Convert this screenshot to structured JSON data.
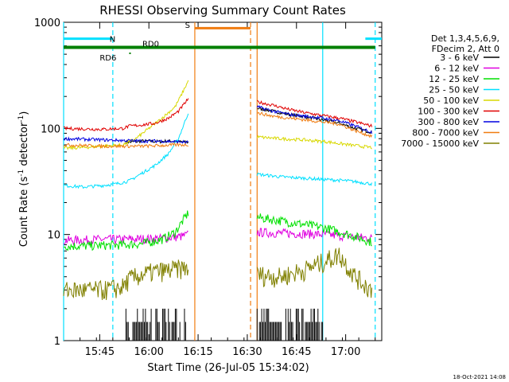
{
  "chart_data": {
    "type": "line",
    "title": "RHESSI Observing Summary Count Rates",
    "xlabel": "Start Time (26-Jul-05 15:34:02)",
    "ylabel_main": "Count Rate (s",
    "ylabel_sup1": "-1",
    "ylabel_mid": " detector",
    "ylabel_sup2": "-1",
    "ylabel_end": ")",
    "yscale": "log",
    "ylim": [
      1,
      1000
    ],
    "xlim": [
      "15:34",
      "17:11"
    ],
    "x_ticks": [
      "15:45",
      "16:00",
      "16:15",
      "16:30",
      "16:45",
      "17:00"
    ],
    "y_ticks": [
      "1",
      "10",
      "100",
      "1000"
    ],
    "legend_header": [
      "Det 1,3,4,5,6,9,",
      "FDecim 2, Att 0"
    ],
    "legend_position": "right",
    "footer_date": "18-Oct-2021 14:08",
    "flags": {
      "N": {
        "label": "N",
        "color": "#00e0ff",
        "intervals": [
          [
            "15:34",
            "15:49"
          ],
          [
            "17:06",
            "17:11"
          ]
        ]
      },
      "S": {
        "label": "S",
        "color": "#f07c10",
        "intervals": [
          [
            "16:14",
            "16:31"
          ]
        ]
      },
      "RD0": {
        "label": "RD0",
        "color": "#008000"
      },
      "RD6": {
        "label": "RD6",
        "color": "#008000"
      }
    },
    "vertical_markers": [
      {
        "time": "15:34",
        "color": "#00e0ff",
        "style": "solid"
      },
      {
        "time": "15:49",
        "color": "#00e0ff",
        "style": "dashed"
      },
      {
        "time": "16:14",
        "color": "#f07c10",
        "style": "solid"
      },
      {
        "time": "16:31",
        "color": "#f07c10",
        "style": "dashed"
      },
      {
        "time": "16:33",
        "color": "#f07c10",
        "style": "solid"
      },
      {
        "time": "16:53",
        "color": "#00e0ff",
        "style": "solid"
      },
      {
        "time": "17:09",
        "color": "#00e0ff",
        "style": "dashed"
      }
    ],
    "data_gap": [
      "16:12",
      "16:33"
    ],
    "series": [
      {
        "name": "3 - 6 keV",
        "color": "#000000",
        "segments": [
          {
            "t": [
              "15:53",
              "15:56",
              "15:58",
              "16:00",
              "16:03",
              "16:06",
              "16:09",
              "16:12"
            ],
            "y": [
              74,
              75,
              76,
              76,
              75,
              76,
              75,
              74
            ]
          },
          {
            "t": [
              "16:33",
              "16:38",
              "16:43",
              "16:48",
              "16:53",
              "16:58",
              "17:03",
              "17:08"
            ],
            "y": [
              155,
              145,
              135,
              128,
              120,
              112,
              100,
              92
            ]
          }
        ]
      },
      {
        "name": "6 - 12 keV",
        "color": "#e000e0",
        "segments": [
          {
            "t": [
              "15:34",
              "15:40",
              "15:46",
              "15:52",
              "15:58",
              "16:04",
              "16:10",
              "16:12"
            ],
            "y": [
              8.8,
              8.9,
              9.0,
              9.0,
              9.1,
              9.2,
              9.6,
              10
            ]
          },
          {
            "t": [
              "16:33",
              "16:40",
              "16:47",
              "16:54",
              "17:01",
              "17:08"
            ],
            "y": [
              10.5,
              10.3,
              10.2,
              10.0,
              9.6,
              9.2
            ]
          }
        ]
      },
      {
        "name": "12 - 25 keV",
        "color": "#00e000",
        "segments": [
          {
            "t": [
              "15:34",
              "15:40",
              "15:46",
              "15:52",
              "15:58",
              "16:04",
              "16:08",
              "16:10",
              "16:12"
            ],
            "y": [
              7.8,
              7.8,
              7.9,
              8.0,
              8.2,
              9.0,
              10.5,
              13,
              16
            ]
          },
          {
            "t": [
              "16:33",
              "16:40",
              "16:47",
              "16:54",
              "17:01",
              "17:08"
            ],
            "y": [
              14.5,
              13.5,
              12.5,
              11.5,
              10,
              8.5
            ]
          }
        ]
      },
      {
        "name": "25 - 50 keV",
        "color": "#00e0ff",
        "segments": [
          {
            "t": [
              "15:34",
              "15:40",
              "15:46",
              "15:50",
              "15:54",
              "15:58",
              "16:02",
              "16:06",
              "16:09",
              "16:12"
            ],
            "y": [
              29,
              28,
              29,
              30,
              32,
              38,
              45,
              58,
              80,
              140
            ]
          },
          {
            "t": [
              "16:33",
              "16:40",
              "16:47",
              "16:54",
              "17:01",
              "17:08"
            ],
            "y": [
              37,
              35,
              34,
              33,
              32,
              30
            ]
          }
        ]
      },
      {
        "name": "50 - 100 keV",
        "color": "#d8d800",
        "segments": [
          {
            "t": [
              "15:34",
              "15:40",
              "15:46",
              "15:52",
              "15:56",
              "16:00",
              "16:04",
              "16:08",
              "16:10",
              "16:12"
            ],
            "y": [
              65,
              66,
              68,
              70,
              80,
              100,
              125,
              160,
              210,
              280
            ]
          },
          {
            "t": [
              "16:33",
              "16:40",
              "16:47",
              "16:54",
              "17:01",
              "17:08"
            ],
            "y": [
              83,
              80,
              78,
              75,
              70,
              66
            ]
          }
        ]
      },
      {
        "name": "100 - 300 keV",
        "color": "#e00000",
        "segments": [
          {
            "t": [
              "15:34",
              "15:40",
              "15:46",
              "15:52",
              "15:54",
              "15:58",
              "16:02",
              "16:06",
              "16:09",
              "16:12"
            ],
            "y": [
              100,
              99,
              98,
              100,
              105,
              108,
              112,
              125,
              145,
              190
            ]
          },
          {
            "t": [
              "16:33",
              "16:38",
              "16:43",
              "16:48",
              "16:53",
              "16:58",
              "17:03",
              "17:08"
            ],
            "y": [
              178,
              165,
              150,
              140,
              132,
              125,
              115,
              105
            ]
          }
        ]
      },
      {
        "name": "300 - 800 keV",
        "color": "#0000e0",
        "segments": [
          {
            "t": [
              "15:34",
              "15:40",
              "15:46",
              "15:52",
              "15:58",
              "16:04",
              "16:08",
              "16:12"
            ],
            "y": [
              80,
              79,
              78,
              77,
              76,
              76,
              75,
              74
            ]
          },
          {
            "t": [
              "16:33",
              "16:38",
              "16:43",
              "16:48",
              "16:53",
              "16:58",
              "17:03",
              "17:08"
            ],
            "y": [
              160,
              145,
              135,
              130,
              125,
              118,
              105,
              92
            ]
          }
        ]
      },
      {
        "name": "800 - 7000 keV",
        "color": "#f07c10",
        "segments": [
          {
            "t": [
              "15:34",
              "15:40",
              "15:46",
              "15:52",
              "15:58",
              "16:04",
              "16:08",
              "16:12"
            ],
            "y": [
              70,
              69,
              68,
              68,
              68,
              69,
              70,
              70
            ]
          },
          {
            "t": [
              "16:33",
              "16:38",
              "16:43",
              "16:48",
              "16:53",
              "16:58",
              "17:03",
              "17:08"
            ],
            "y": [
              140,
              130,
              125,
              120,
              115,
              110,
              95,
              84
            ]
          }
        ]
      },
      {
        "name": "7000 - 15000 keV",
        "color": "#808000",
        "segments": [
          {
            "t": [
              "15:34",
              "15:40",
              "15:46",
              "15:52",
              "15:54",
              "15:58",
              "16:02",
              "16:06",
              "16:10",
              "16:12"
            ],
            "y": [
              3.0,
              3.0,
              3.0,
              3.2,
              3.8,
              4.2,
              4.5,
              4.6,
              4.8,
              4.9
            ]
          },
          {
            "t": [
              "16:33",
              "16:40",
              "16:47",
              "16:53",
              "16:58",
              "17:03",
              "17:08"
            ],
            "y": [
              4.2,
              4.0,
              4.6,
              5.5,
              6.5,
              4.0,
              3.0
            ]
          }
        ]
      }
    ]
  }
}
